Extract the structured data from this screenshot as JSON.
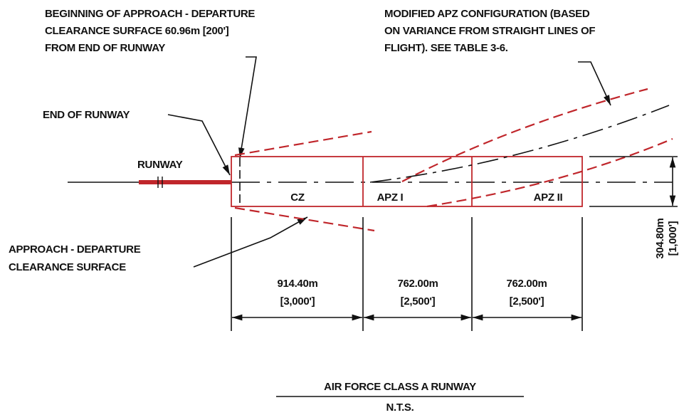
{
  "annotations": {
    "beginning": [
      "BEGINNING OF APPROACH - DEPARTURE",
      "CLEARANCE SURFACE 60.96m [200']",
      "FROM END OF RUNWAY"
    ],
    "modified": [
      "MODIFIED APZ CONFIGURATION (BASED",
      "ON VARIANCE FROM STRAIGHT LINES OF",
      "FLIGHT).  SEE TABLE 3-6."
    ],
    "end_of_runway": "END OF RUNWAY",
    "runway": "RUNWAY",
    "surface": [
      "APPROACH - DEPARTURE",
      "CLEARANCE SURFACE"
    ]
  },
  "zones": [
    "CZ",
    "APZ I",
    "APZ II"
  ],
  "dimensions": [
    [
      "914.40m",
      "[3,000']"
    ],
    [
      "762.00m",
      "[2,500']"
    ],
    [
      "762.00m",
      "[2,500']"
    ]
  ],
  "width_dimension": [
    "304.80m",
    "[1,000']"
  ],
  "title": "AIR FORCE CLASS A RUNWAY",
  "subtitle": "N.T.S."
}
